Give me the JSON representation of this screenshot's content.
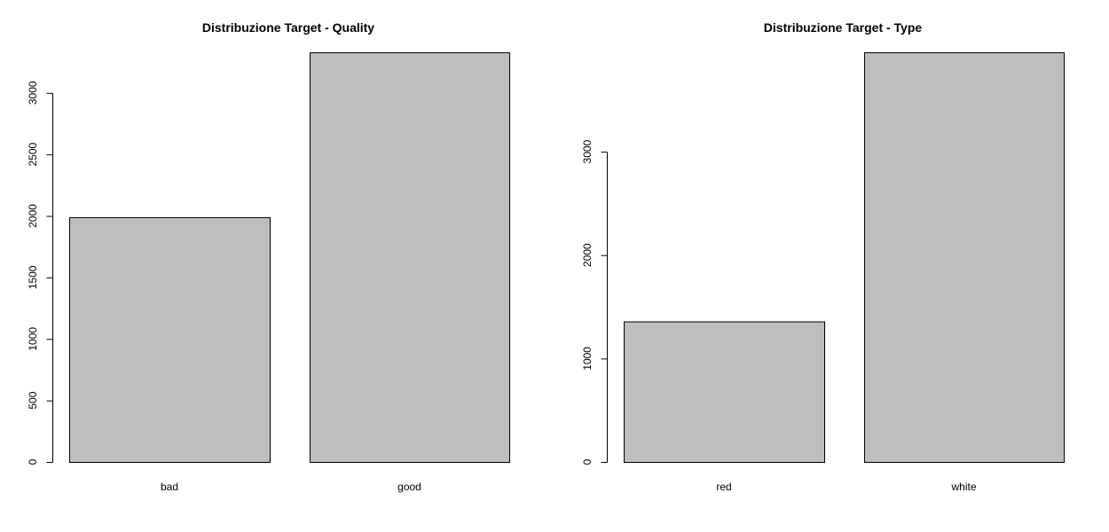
{
  "colors": {
    "bar_fill": "#bebebe",
    "bar_stroke": "#000000",
    "background": "#ffffff"
  },
  "chart_data": [
    {
      "type": "bar",
      "title": "Distribuzione Target - Quality",
      "categories": [
        "bad",
        "good"
      ],
      "values": [
        1990,
        3330
      ],
      "yticks": [
        0,
        500,
        1000,
        1500,
        2000,
        2500,
        3000
      ],
      "ylim": [
        0,
        3330
      ],
      "xlabel": "",
      "ylabel": "",
      "grid": false
    },
    {
      "type": "bar",
      "title": "Distribuzione Target - Type",
      "categories": [
        "red",
        "white"
      ],
      "values": [
        1359,
        3961
      ],
      "yticks": [
        0,
        1000,
        2000,
        3000
      ],
      "ylim": [
        0,
        3961
      ],
      "xlabel": "",
      "ylabel": "",
      "grid": false
    }
  ]
}
